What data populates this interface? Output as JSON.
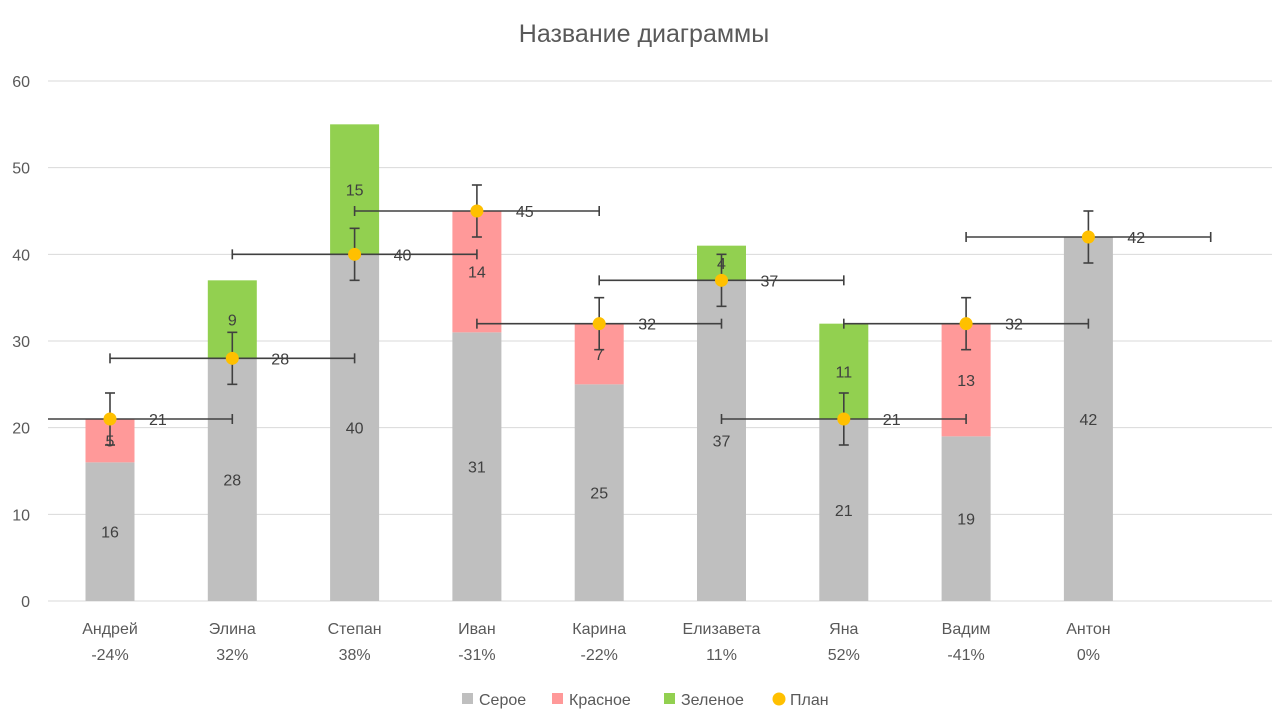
{
  "chart_data": {
    "type": "bar",
    "title": "Название диаграммы",
    "xlabel": "",
    "ylabel": "",
    "ylim": [
      0,
      60
    ],
    "yticks": [
      0,
      10,
      20,
      30,
      40,
      50,
      60
    ],
    "grid": true,
    "legend_position": "bottom",
    "categories": [
      {
        "name": "Андрей",
        "pct": "-24%"
      },
      {
        "name": "Элина",
        "pct": "32%"
      },
      {
        "name": "Степан",
        "pct": "38%"
      },
      {
        "name": "Иван",
        "pct": "-31%"
      },
      {
        "name": "Карина",
        "pct": "-22%"
      },
      {
        "name": "Елизавета",
        "pct": "11%"
      },
      {
        "name": "Яна",
        "pct": "52%"
      },
      {
        "name": "Вадим",
        "pct": "-41%"
      },
      {
        "name": "Антон",
        "pct": "0%"
      }
    ],
    "series": [
      {
        "name": "Серое",
        "color": "#bfbfbf",
        "values": [
          16,
          28,
          40,
          31,
          25,
          37,
          21,
          19,
          42
        ]
      },
      {
        "name": "Красное",
        "color": "#ff9999",
        "values": [
          5,
          0,
          0,
          14,
          7,
          0,
          0,
          13,
          0
        ]
      },
      {
        "name": "Зеленое",
        "color": "#92d050",
        "values": [
          0,
          9,
          15,
          0,
          0,
          4,
          11,
          0,
          0
        ]
      }
    ],
    "plan": {
      "name": "План",
      "color": "#ffc000",
      "values": [
        21,
        28,
        40,
        45,
        32,
        37,
        21,
        32,
        42
      ],
      "y_error": 3,
      "x_error": 1
    }
  }
}
